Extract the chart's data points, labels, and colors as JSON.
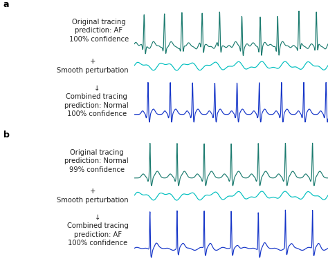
{
  "panel_a_label": "a",
  "panel_b_label": "b",
  "labels_a": [
    "Original tracing\nprediction: AF\n100% confidence",
    "+\nSmooth perturbation",
    "↓\nCombined tracing\nprediction: Normal\n100% confidence"
  ],
  "labels_b": [
    "Original tracing\nprediction: Normal\n99% confidence",
    "+\nSmooth perturbation",
    "↓\nCombined tracing\nprediction: AF\n100% confidence"
  ],
  "ecg_color_teal": "#1a7a6e",
  "ecg_color_cyan": "#00bfbf",
  "ecg_color_blue": "#1535c8",
  "background_color": "#ffffff",
  "label_fontsize": 7.2,
  "panel_label_fontsize": 9
}
